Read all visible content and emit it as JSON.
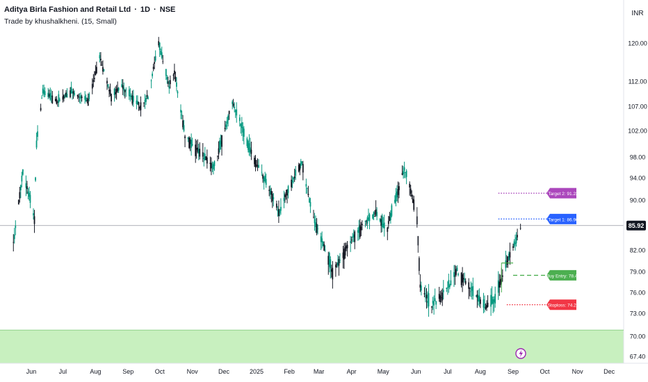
{
  "header": {
    "symbol_name": "Aditya Birla Fashion and Retail Ltd",
    "interval": "1D",
    "exchange": "NSE",
    "indicator": "Trade by khushalkheni.",
    "indicator_params": "(15, Small)"
  },
  "currency": "INR",
  "chart_data": {
    "type": "candlestick",
    "title": "Aditya Birla Fashion and Retail Ltd · 1D · NSE",
    "y_ticks": [
      "120.00",
      "112.00",
      "107.00",
      "102.00",
      "98.00",
      "94.00",
      "90.00",
      "82.00",
      "79.00",
      "76.00",
      "73.00",
      "70.00",
      "67.40"
    ],
    "x_ticks": [
      "Jun",
      "Jul",
      "Aug",
      "Sep",
      "Oct",
      "Nov",
      "Dec",
      "2025",
      "Feb",
      "Mar",
      "Apr",
      "May",
      "Jun",
      "Jul",
      "Aug",
      "Sep",
      "Oct",
      "Nov",
      "Dec"
    ],
    "last_price": "85.92",
    "price_path": [
      {
        "date": "2024-05-15",
        "price": 83
      },
      {
        "date": "2024-05-24",
        "price": 95
      },
      {
        "date": "2024-06-04",
        "price": 87
      },
      {
        "date": "2024-06-06",
        "price": 100
      },
      {
        "date": "2024-06-12",
        "price": 110
      },
      {
        "date": "2024-06-25",
        "price": 108
      },
      {
        "date": "2024-07-10",
        "price": 110
      },
      {
        "date": "2024-07-25",
        "price": 108
      },
      {
        "date": "2024-08-05",
        "price": 117
      },
      {
        "date": "2024-08-16",
        "price": 109
      },
      {
        "date": "2024-08-26",
        "price": 111
      },
      {
        "date": "2024-09-12",
        "price": 107
      },
      {
        "date": "2024-09-20",
        "price": 109
      },
      {
        "date": "2024-09-30",
        "price": 120
      },
      {
        "date": "2024-10-10",
        "price": 111
      },
      {
        "date": "2024-10-15",
        "price": 114
      },
      {
        "date": "2024-10-25",
        "price": 101
      },
      {
        "date": "2024-11-12",
        "price": 98
      },
      {
        "date": "2024-11-21",
        "price": 96
      },
      {
        "date": "2024-12-03",
        "price": 103
      },
      {
        "date": "2024-12-09",
        "price": 108
      },
      {
        "date": "2024-12-23",
        "price": 100
      },
      {
        "date": "2025-01-08",
        "price": 94
      },
      {
        "date": "2025-01-22",
        "price": 88
      },
      {
        "date": "2025-02-05",
        "price": 94
      },
      {
        "date": "2025-02-13",
        "price": 97
      },
      {
        "date": "2025-02-22",
        "price": 88
      },
      {
        "date": "2025-03-07",
        "price": 82
      },
      {
        "date": "2025-03-14",
        "price": 79
      },
      {
        "date": "2025-03-23",
        "price": 81
      },
      {
        "date": "2025-04-02",
        "price": 84
      },
      {
        "date": "2025-04-12",
        "price": 86
      },
      {
        "date": "2025-04-25",
        "price": 88
      },
      {
        "date": "2025-05-04",
        "price": 85
      },
      {
        "date": "2025-05-14",
        "price": 91
      },
      {
        "date": "2025-05-21",
        "price": 96
      },
      {
        "date": "2025-06-01",
        "price": 88
      },
      {
        "date": "2025-06-02",
        "price": 87
      },
      {
        "date": "2025-06-05",
        "price": 77
      },
      {
        "date": "2025-06-15",
        "price": 74
      },
      {
        "date": "2025-06-28",
        "price": 76
      },
      {
        "date": "2025-07-10",
        "price": 79
      },
      {
        "date": "2025-07-25",
        "price": 76
      },
      {
        "date": "2025-08-05",
        "price": 74
      },
      {
        "date": "2025-08-15",
        "price": 75
      },
      {
        "date": "2025-08-25",
        "price": 80
      },
      {
        "date": "2025-09-05",
        "price": 84
      },
      {
        "date": "2025-09-09",
        "price": 85.9
      }
    ],
    "trade_levels": [
      {
        "label": "Target 2: 91.23",
        "value": 91.23,
        "color": "#ab47bc",
        "style": "dotted",
        "line_start": "2025-08-18"
      },
      {
        "label": "Target 1: 86.96",
        "value": 86.96,
        "color": "#2962ff",
        "style": "dotted",
        "line_start": "2025-08-18"
      },
      {
        "label": "Buy Entry: 78.46",
        "value": 78.46,
        "color": "#4caf50",
        "style": "dashed",
        "line_start": "2025-09-01"
      },
      {
        "label": "Stoploss: 74.23",
        "value": 74.23,
        "color": "#f23645",
        "style": "dotted",
        "line_start": "2025-08-26"
      }
    ],
    "horizontal_line": 85.92,
    "support_zone": {
      "from": 67.4,
      "to": 70.8,
      "color": "#c8f0bf"
    },
    "grid": false,
    "legend": "top-left"
  },
  "colors": {
    "up": "#089981",
    "down": "#131722",
    "background": "#ffffff",
    "axis_text": "#131722",
    "price_tag": "#131722"
  },
  "icons": {
    "zone_marker": "lightning-icon"
  }
}
